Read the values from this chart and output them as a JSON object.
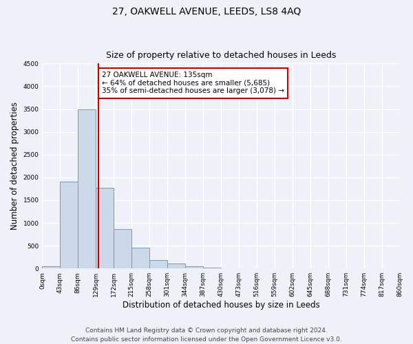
{
  "title": "27, OAKWELL AVENUE, LEEDS, LS8 4AQ",
  "subtitle": "Size of property relative to detached houses in Leeds",
  "xlabel": "Distribution of detached houses by size in Leeds",
  "ylabel": "Number of detached properties",
  "bar_color": "#ccd9e8",
  "bar_edge_color": "#7799bb",
  "bar_left_edges": [
    0,
    43,
    86,
    129,
    172,
    215,
    258,
    301,
    344,
    387,
    430,
    473,
    516,
    559,
    602,
    645,
    688,
    731,
    774,
    817
  ],
  "bar_heights": [
    45,
    1900,
    3500,
    1775,
    870,
    460,
    185,
    105,
    55,
    22,
    8,
    3,
    2,
    1,
    0,
    0,
    0,
    0,
    0,
    0
  ],
  "bin_width": 43,
  "property_line_x": 135,
  "property_line_color": "#cc0000",
  "annotation_text": "27 OAKWELL AVENUE: 135sqm\n← 64% of detached houses are smaller (5,685)\n35% of semi-detached houses are larger (3,078) →",
  "annotation_box_color": "#ffffff",
  "annotation_box_edge_color": "#cc0000",
  "ylim": [
    0,
    4500
  ],
  "yticks": [
    0,
    500,
    1000,
    1500,
    2000,
    2500,
    3000,
    3500,
    4000,
    4500
  ],
  "tick_labels": [
    "0sqm",
    "43sqm",
    "86sqm",
    "129sqm",
    "172sqm",
    "215sqm",
    "258sqm",
    "301sqm",
    "344sqm",
    "387sqm",
    "430sqm",
    "473sqm",
    "516sqm",
    "559sqm",
    "602sqm",
    "645sqm",
    "688sqm",
    "731sqm",
    "774sqm",
    "817sqm",
    "860sqm"
  ],
  "footer_text1": "Contains HM Land Registry data © Crown copyright and database right 2024.",
  "footer_text2": "Contains public sector information licensed under the Open Government Licence v3.0.",
  "background_color": "#eef2f8",
  "grid_color": "#ffffff",
  "title_fontsize": 10,
  "subtitle_fontsize": 9,
  "axis_label_fontsize": 8.5,
  "tick_fontsize": 6.5,
  "footer_fontsize": 6.5,
  "annotation_fontsize": 7.5
}
